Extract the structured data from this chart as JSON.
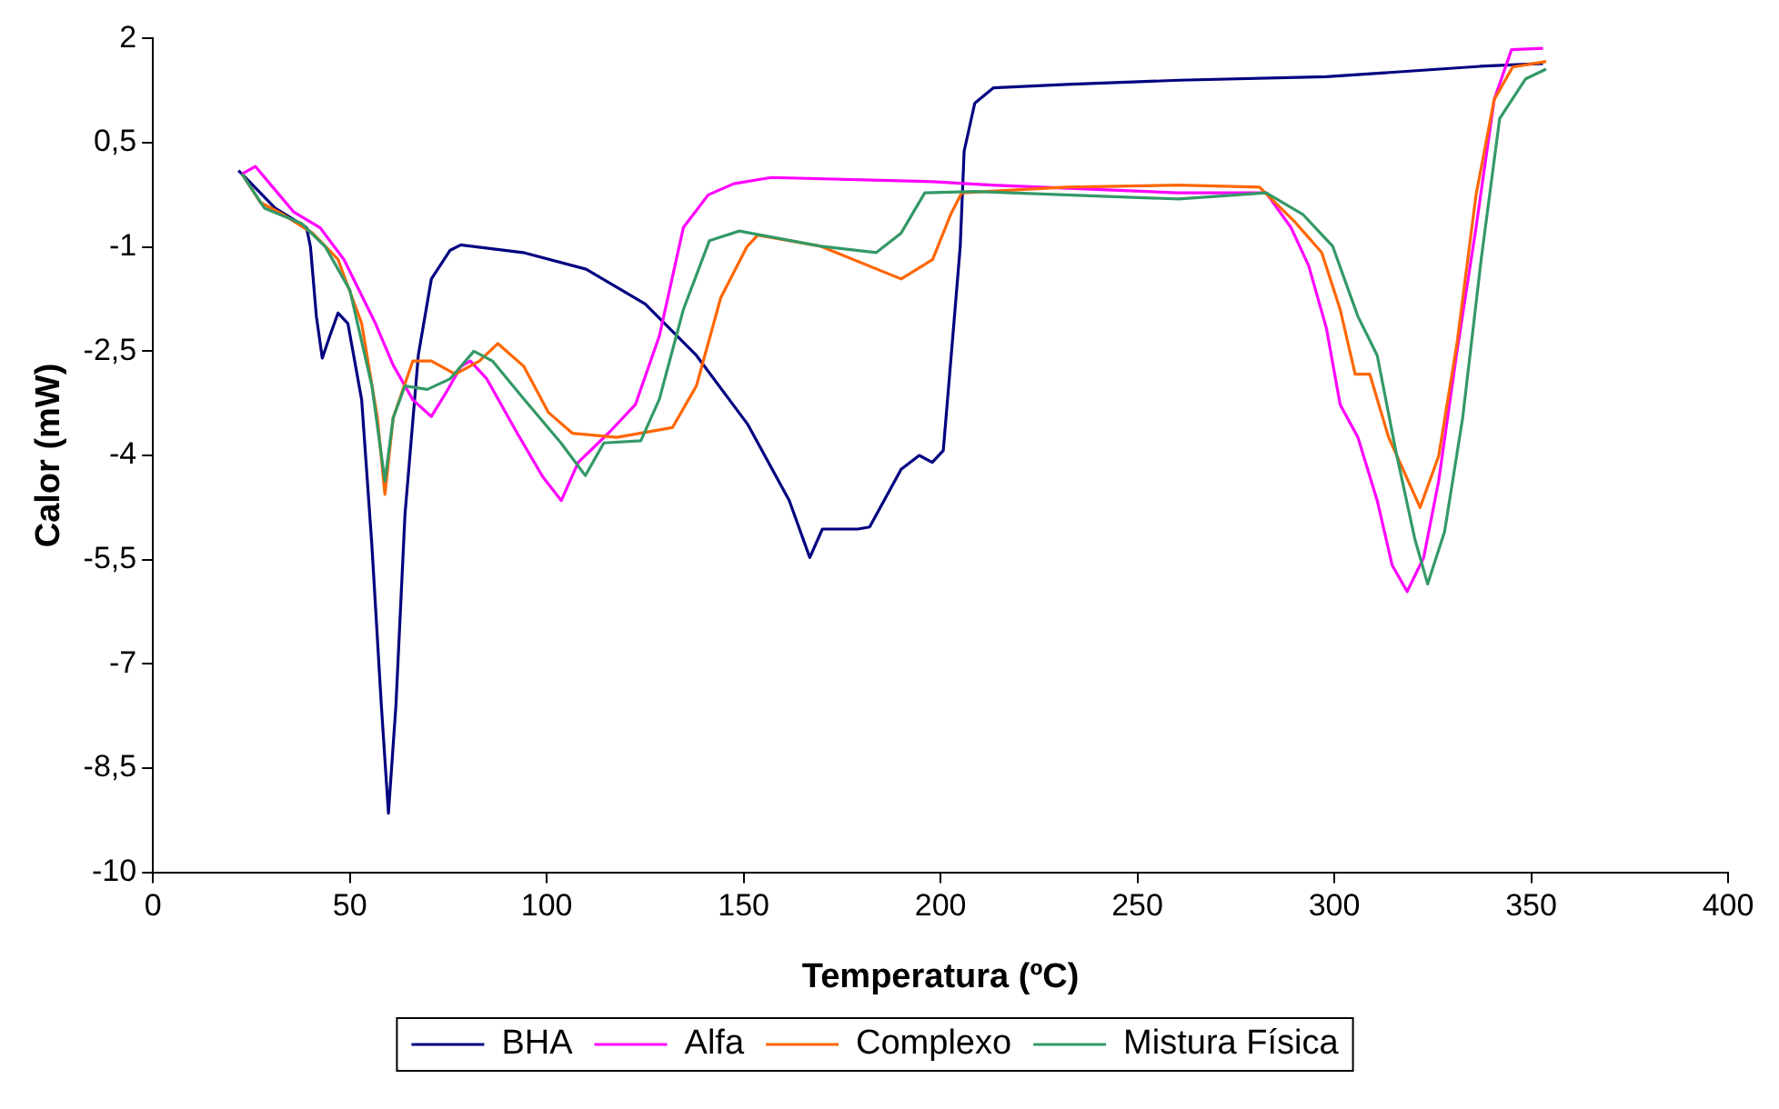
{
  "chart_data": {
    "type": "line",
    "xlabel": "Temperatura (ºC)",
    "ylabel": "Calor (mW)",
    "xlim": [
      0,
      400
    ],
    "xticks": [
      0,
      50,
      100,
      150,
      200,
      250,
      300,
      350,
      400
    ],
    "ylim": [
      -10,
      2
    ],
    "yticks": [
      {
        "value": -10,
        "label": "-10"
      },
      {
        "value": -8.5,
        "label": "-8,5"
      },
      {
        "value": -7,
        "label": "-7"
      },
      {
        "value": -5.5,
        "label": "-5,5"
      },
      {
        "value": -4,
        "label": "-4"
      },
      {
        "value": -2.5,
        "label": "-2,5"
      },
      {
        "value": -1,
        "label": "-1"
      },
      {
        "value": 0.5,
        "label": "0,5"
      },
      {
        "value": 2,
        "label": "2"
      }
    ],
    "grid": false,
    "legend": "bottom",
    "marker": "none",
    "line_style": "solid",
    "series": [
      {
        "name": "BHA",
        "color": "#000080",
        "x": [
          21.7,
          22.6,
          31,
          39,
          40,
          41.5,
          43,
          44.8,
          47,
          49.5,
          53,
          55.6,
          58,
          59.8,
          61.7,
          64,
          67.4,
          70.7,
          75.4,
          78.2,
          94,
          110,
          125,
          138,
          151,
          161.6,
          166.8,
          170,
          179,
          182,
          190,
          194.6,
          197.9,
          200.7,
          203,
          205,
          206,
          208.7,
          213.4,
          232,
          260.5,
          298,
          337,
          353
        ],
        "values": [
          0.1,
          0.05,
          -0.44,
          -0.72,
          -1.0,
          -2.0,
          -2.6,
          -2.3,
          -1.95,
          -2.1,
          -3.2,
          -5.3,
          -7.6,
          -9.15,
          -7.6,
          -4.85,
          -2.55,
          -1.46,
          -1.05,
          -0.97,
          -1.08,
          -1.32,
          -1.82,
          -2.56,
          -3.55,
          -4.65,
          -5.47,
          -5.06,
          -5.06,
          -5.03,
          -4.2,
          -4.0,
          -4.1,
          -3.93,
          -2.37,
          -1.0,
          0.38,
          1.07,
          1.29,
          1.34,
          1.4,
          1.45,
          1.6,
          1.64
        ]
      },
      {
        "name": "Alfa",
        "color": "#ff00ff",
        "x": [
          22.6,
          26,
          29.7,
          35.8,
          42.4,
          48.5,
          56.5,
          61,
          66,
          70.7,
          74.4,
          78.2,
          80.6,
          84.8,
          92.3,
          98.9,
          103.7,
          108,
          116,
          122.5,
          128.6,
          134.7,
          141,
          147.5,
          157,
          198,
          213,
          260,
          282.7,
          289,
          293.5,
          298,
          301.5,
          306,
          310.9,
          314.7,
          318.5,
          322.7,
          326.5,
          331,
          336,
          340.6,
          345,
          353
        ],
        "values": [
          0.05,
          0.16,
          -0.09,
          -0.5,
          -0.72,
          -1.18,
          -2.1,
          -2.7,
          -3.2,
          -3.44,
          -3.1,
          -2.72,
          -2.64,
          -2.9,
          -3.66,
          -4.3,
          -4.65,
          -4.1,
          -3.66,
          -3.27,
          -2.28,
          -0.72,
          -0.25,
          -0.09,
          0,
          -0.06,
          -0.11,
          -0.22,
          -0.22,
          -0.72,
          -1.27,
          -2.17,
          -3.27,
          -3.74,
          -4.65,
          -5.58,
          -5.96,
          -5.47,
          -4.37,
          -2.56,
          -0.72,
          1.12,
          1.84,
          1.86
        ]
      },
      {
        "name": "Complexo",
        "color": "#ff6600",
        "x": [
          22.6,
          27.3,
          33,
          40.5,
          47,
          53,
          57,
          58.9,
          61,
          66,
          70.7,
          76.8,
          82.9,
          87.6,
          94.2,
          100.4,
          106.5,
          117.8,
          131.9,
          138,
          144.2,
          150.8,
          153.6,
          169.6,
          190,
          198,
          202.6,
          205.4,
          232,
          260.5,
          281,
          290,
          296.8,
          301.5,
          305.3,
          309,
          313.8,
          321.8,
          326.5,
          331.2,
          336,
          340.6,
          345.3,
          353.8
        ],
        "values": [
          0.05,
          -0.36,
          -0.53,
          -0.8,
          -1.18,
          -2.1,
          -3.46,
          -4.56,
          -3.46,
          -2.64,
          -2.64,
          -2.83,
          -2.64,
          -2.39,
          -2.72,
          -3.38,
          -3.68,
          -3.74,
          -3.6,
          -3.0,
          -1.73,
          -1.0,
          -0.83,
          -0.99,
          -1.46,
          -1.18,
          -0.53,
          -0.22,
          -0.14,
          -0.11,
          -0.14,
          -0.64,
          -1.08,
          -1.9,
          -2.83,
          -2.83,
          -3.74,
          -4.75,
          -4.01,
          -2.37,
          -0.25,
          1.12,
          1.59,
          1.67
        ]
      },
      {
        "name": "Mistura Física",
        "color": "#339966",
        "x": [
          22.6,
          28.3,
          37.7,
          43.8,
          50,
          55.6,
          58.9,
          61,
          64,
          69.7,
          75.4,
          81.5,
          86.2,
          94.2,
          103.6,
          109.8,
          114.5,
          123.9,
          128.6,
          134.7,
          141.3,
          148.9,
          169.6,
          183.7,
          190,
          196,
          208.7,
          260.5,
          282.7,
          292,
          299.6,
          306,
          310.9,
          315.6,
          320.4,
          323.7,
          328,
          332.6,
          337.3,
          342,
          348.6,
          353.8
        ],
        "values": [
          0.05,
          -0.44,
          -0.66,
          -1.0,
          -1.62,
          -3.0,
          -4.37,
          -3.46,
          -3.0,
          -3.05,
          -2.9,
          -2.5,
          -2.64,
          -3.19,
          -3.82,
          -4.29,
          -3.82,
          -3.79,
          -3.19,
          -1.9,
          -0.91,
          -0.77,
          -0.99,
          -1.08,
          -0.8,
          -0.22,
          -0.2,
          -0.31,
          -0.22,
          -0.53,
          -0.99,
          -2.0,
          -2.56,
          -3.93,
          -5.19,
          -5.85,
          -5.1,
          -3.46,
          -1.18,
          0.85,
          1.42,
          1.56
        ]
      }
    ]
  }
}
